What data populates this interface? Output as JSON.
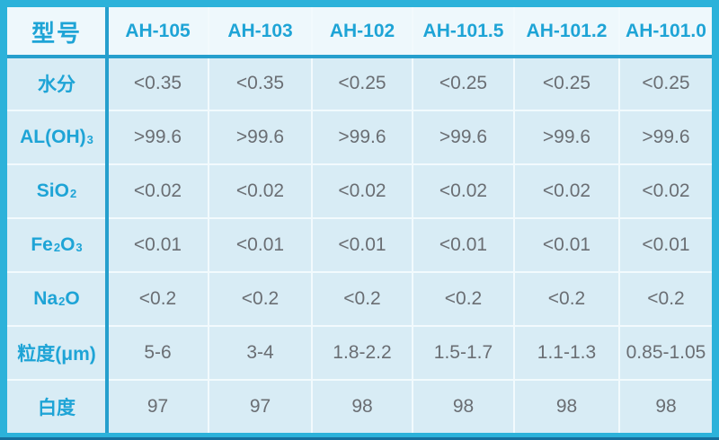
{
  "chart_data": {
    "type": "table",
    "corner_label": "型号",
    "columns": [
      "AH-105",
      "AH-103",
      "AH-102",
      "AH-101.5",
      "AH-101.2",
      "AH-101.0"
    ],
    "rows": [
      {
        "name": "moisture",
        "label_parts": [
          "水分"
        ],
        "values": [
          "<0.35",
          "<0.35",
          "<0.25",
          "<0.25",
          "<0.25",
          "<0.25"
        ]
      },
      {
        "name": "al-oh-3",
        "label_parts": [
          "AL(OH)",
          {
            "sub": "3"
          }
        ],
        "values": [
          ">99.6",
          ">99.6",
          ">99.6",
          ">99.6",
          ">99.6",
          ">99.6"
        ]
      },
      {
        "name": "sio2",
        "label_parts": [
          "SiO",
          {
            "sub": "2"
          }
        ],
        "values": [
          "<0.02",
          "<0.02",
          "<0.02",
          "<0.02",
          "<0.02",
          "<0.02"
        ]
      },
      {
        "name": "fe2o3",
        "label_parts": [
          "Fe",
          {
            "sub": "2"
          },
          "O",
          {
            "sub": "3"
          }
        ],
        "values": [
          "<0.01",
          "<0.01",
          "<0.01",
          "<0.01",
          "<0.01",
          "<0.01"
        ]
      },
      {
        "name": "na2o",
        "label_parts": [
          "Na",
          {
            "sub": "2"
          },
          "O"
        ],
        "values": [
          "<0.2",
          "<0.2",
          "<0.2",
          "<0.2",
          "<0.2",
          "<0.2"
        ]
      },
      {
        "name": "particle-size",
        "label_parts": [
          "粒度(μm)"
        ],
        "values": [
          "5-6",
          "3-4",
          "1.8-2.2",
          "1.5-1.7",
          "1.1-1.3",
          "0.85-1.05"
        ]
      },
      {
        "name": "whiteness",
        "label_parts": [
          "白度"
        ],
        "values": [
          "97",
          "97",
          "98",
          "98",
          "98",
          "98"
        ]
      }
    ]
  },
  "colors": {
    "border": "#2cb2da",
    "line-strong": "#259fcd",
    "line-thin": "#f2fafd",
    "header-bg": "#eef8fc",
    "cell-bg": "#d8ecf5",
    "text-cyan": "#1ea4d6",
    "text-gray": "#6a6e73",
    "edge-dark": "#176e9c"
  }
}
